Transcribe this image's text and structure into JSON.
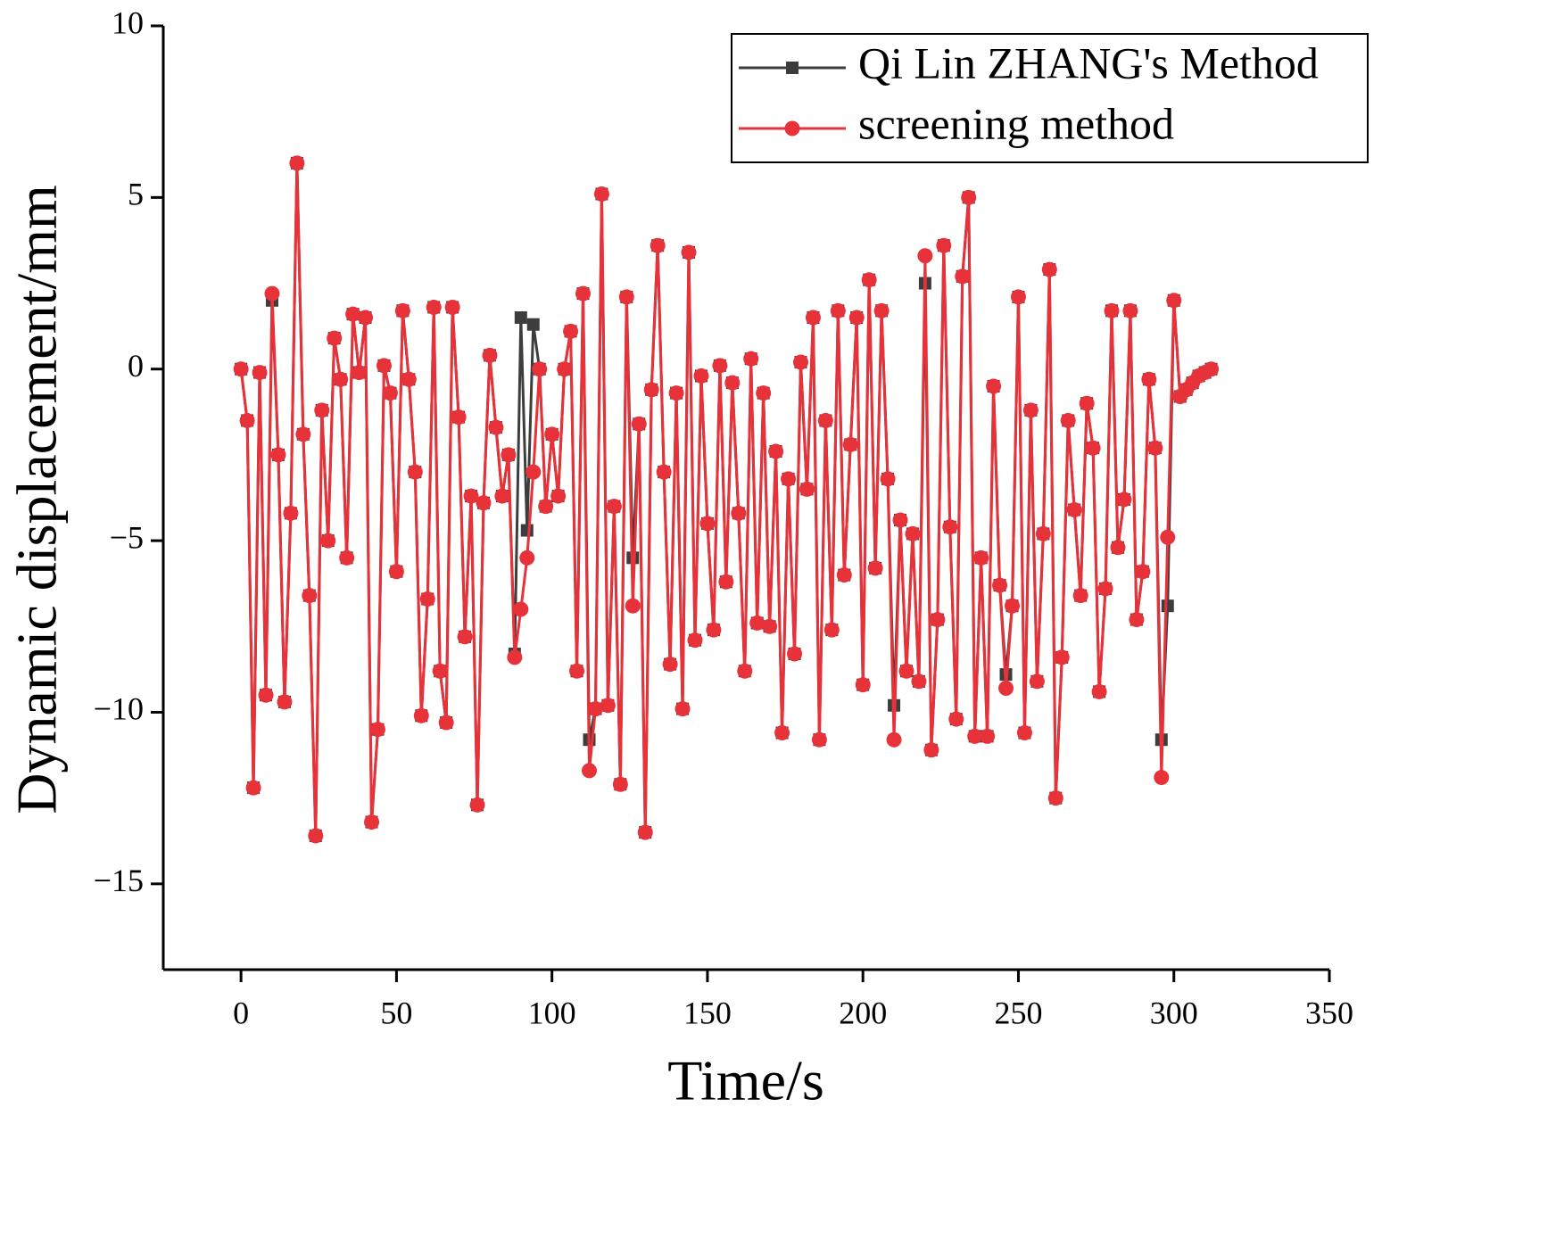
{
  "chart_data": {
    "type": "line",
    "xlabel": "Time/s",
    "ylabel": "Dynamic displacement/mm",
    "xlim": [
      -25,
      350
    ],
    "ylim": [
      -17.5,
      10
    ],
    "xticks": [
      0,
      50,
      100,
      150,
      200,
      250,
      300,
      350
    ],
    "yticks": [
      {
        "value": -15,
        "label": "−15"
      },
      {
        "value": -10,
        "label": "−10"
      },
      {
        "value": -5,
        "label": "−5"
      },
      0,
      5,
      10
    ],
    "legend": "upper right",
    "x": [
      0,
      2,
      4,
      6,
      8,
      10,
      12,
      14,
      16,
      18,
      20,
      22,
      24,
      26,
      28,
      30,
      32,
      34,
      36,
      38,
      40,
      42,
      44,
      46,
      48,
      50,
      52,
      54,
      56,
      58,
      60,
      62,
      64,
      66,
      68,
      70,
      72,
      74,
      76,
      78,
      80,
      82,
      84,
      86,
      88,
      90,
      92,
      94,
      96,
      98,
      100,
      102,
      104,
      106,
      108,
      110,
      112,
      114,
      116,
      118,
      120,
      122,
      124,
      126,
      128,
      130,
      132,
      134,
      136,
      138,
      140,
      142,
      144,
      146,
      148,
      150,
      152,
      154,
      156,
      158,
      160,
      162,
      164,
      166,
      168,
      170,
      172,
      174,
      176,
      178,
      180,
      182,
      184,
      186,
      188,
      190,
      192,
      194,
      196,
      198,
      200,
      202,
      204,
      206,
      208,
      210,
      212,
      214,
      216,
      218,
      220,
      222,
      224,
      226,
      228,
      230,
      232,
      234,
      236,
      238,
      240,
      242,
      244,
      246,
      248,
      250,
      252,
      254,
      256,
      258,
      260,
      262,
      264,
      266,
      268,
      270,
      272,
      274,
      276,
      278,
      280,
      282,
      284,
      286,
      288,
      290,
      292,
      294,
      296,
      298,
      300,
      302,
      304,
      306,
      308,
      310,
      312
    ],
    "series": [
      {
        "name": "Qi Lin ZHANG's Method",
        "color": "#3d3d3d",
        "marker": "square",
        "values": [
          0,
          -1.5,
          -12.2,
          -0.1,
          -9.5,
          2.0,
          -2.5,
          -9.7,
          -4.2,
          6.0,
          -1.9,
          -6.6,
          -13.6,
          -1.2,
          -5.0,
          0.9,
          -0.3,
          -5.5,
          1.6,
          -0.1,
          1.5,
          -13.2,
          -10.5,
          0.1,
          -0.7,
          -5.9,
          1.7,
          -0.3,
          -3.0,
          -10.1,
          -6.7,
          1.8,
          -8.8,
          -10.3,
          1.8,
          -1.4,
          -7.8,
          -3.7,
          -12.7,
          -3.9,
          0.4,
          -1.7,
          -3.7,
          -2.5,
          -8.3,
          1.5,
          -4.7,
          1.3,
          0.0,
          -4.0,
          -1.9,
          -3.7,
          0.0,
          1.1,
          -8.8,
          2.2,
          -10.8,
          -9.9,
          5.1,
          -9.8,
          -4.0,
          -12.1,
          2.1,
          -5.5,
          -1.6,
          -13.5,
          -0.6,
          3.6,
          -3.0,
          -8.6,
          -0.7,
          -9.9,
          3.4,
          -7.9,
          -0.2,
          -4.5,
          -7.6,
          0.1,
          -6.2,
          -0.4,
          -4.2,
          -8.8,
          0.3,
          -7.4,
          -0.7,
          -7.5,
          -2.4,
          -10.6,
          -3.2,
          -8.3,
          0.2,
          -3.5,
          1.5,
          -10.8,
          -1.5,
          -7.6,
          1.7,
          -6.0,
          -2.2,
          1.5,
          -9.2,
          2.6,
          -5.8,
          1.7,
          -3.2,
          -9.8,
          -4.4,
          -8.8,
          -4.8,
          -9.1,
          2.5,
          -11.1,
          -7.3,
          3.6,
          -4.6,
          -10.2,
          2.7,
          5.0,
          -10.7,
          -5.5,
          -10.7,
          -0.5,
          -6.3,
          -8.9,
          -6.9,
          2.1,
          -10.6,
          -1.2,
          -9.1,
          -4.8,
          2.9,
          -12.5,
          -8.4,
          -1.5,
          -4.1,
          -6.6,
          -1.0,
          -2.3,
          -9.4,
          -6.4,
          1.7,
          -5.2,
          -3.8,
          1.7,
          -7.3,
          -5.9,
          -0.3,
          -2.3,
          -10.8,
          -6.9,
          2.0,
          -0.8,
          -0.6,
          -0.4,
          -0.2,
          -0.1,
          0
        ]
      },
      {
        "name": "screening method",
        "color": "#e8323a",
        "marker": "circle",
        "values": [
          0,
          -1.5,
          -12.2,
          -0.1,
          -9.5,
          2.2,
          -2.5,
          -9.7,
          -4.2,
          6.0,
          -1.9,
          -6.6,
          -13.6,
          -1.2,
          -5.0,
          0.9,
          -0.3,
          -5.5,
          1.6,
          -0.1,
          1.5,
          -13.2,
          -10.5,
          0.1,
          -0.7,
          -5.9,
          1.7,
          -0.3,
          -3.0,
          -10.1,
          -6.7,
          1.8,
          -8.8,
          -10.3,
          1.8,
          -1.4,
          -7.8,
          -3.7,
          -12.7,
          -3.9,
          0.4,
          -1.7,
          -3.7,
          -2.5,
          -8.4,
          -7.0,
          -5.5,
          -3.0,
          0.0,
          -4.0,
          -1.9,
          -3.7,
          0.0,
          1.1,
          -8.8,
          2.2,
          -11.7,
          -9.9,
          5.1,
          -9.8,
          -4.0,
          -12.1,
          2.1,
          -6.9,
          -1.6,
          -13.5,
          -0.6,
          3.6,
          -3.0,
          -8.6,
          -0.7,
          -9.9,
          3.4,
          -7.9,
          -0.2,
          -4.5,
          -7.6,
          0.1,
          -6.2,
          -0.4,
          -4.2,
          -8.8,
          0.3,
          -7.4,
          -0.7,
          -7.5,
          -2.4,
          -10.6,
          -3.2,
          -8.3,
          0.2,
          -3.5,
          1.5,
          -10.8,
          -1.5,
          -7.6,
          1.7,
          -6.0,
          -2.2,
          1.5,
          -9.2,
          2.6,
          -5.8,
          1.7,
          -3.2,
          -10.8,
          -4.4,
          -8.8,
          -4.8,
          -9.1,
          3.3,
          -11.1,
          -7.3,
          3.6,
          -4.6,
          -10.2,
          2.7,
          5.0,
          -10.7,
          -5.5,
          -10.7,
          -0.5,
          -6.3,
          -9.3,
          -6.9,
          2.1,
          -10.6,
          -1.2,
          -9.1,
          -4.8,
          2.9,
          -12.5,
          -8.4,
          -1.5,
          -4.1,
          -6.6,
          -1.0,
          -2.3,
          -9.4,
          -6.4,
          1.7,
          -5.2,
          -3.8,
          1.7,
          -7.3,
          -5.9,
          -0.3,
          -2.3,
          -11.9,
          -4.9,
          2.0,
          -0.8,
          -0.6,
          -0.4,
          -0.2,
          -0.1,
          0
        ]
      }
    ]
  }
}
